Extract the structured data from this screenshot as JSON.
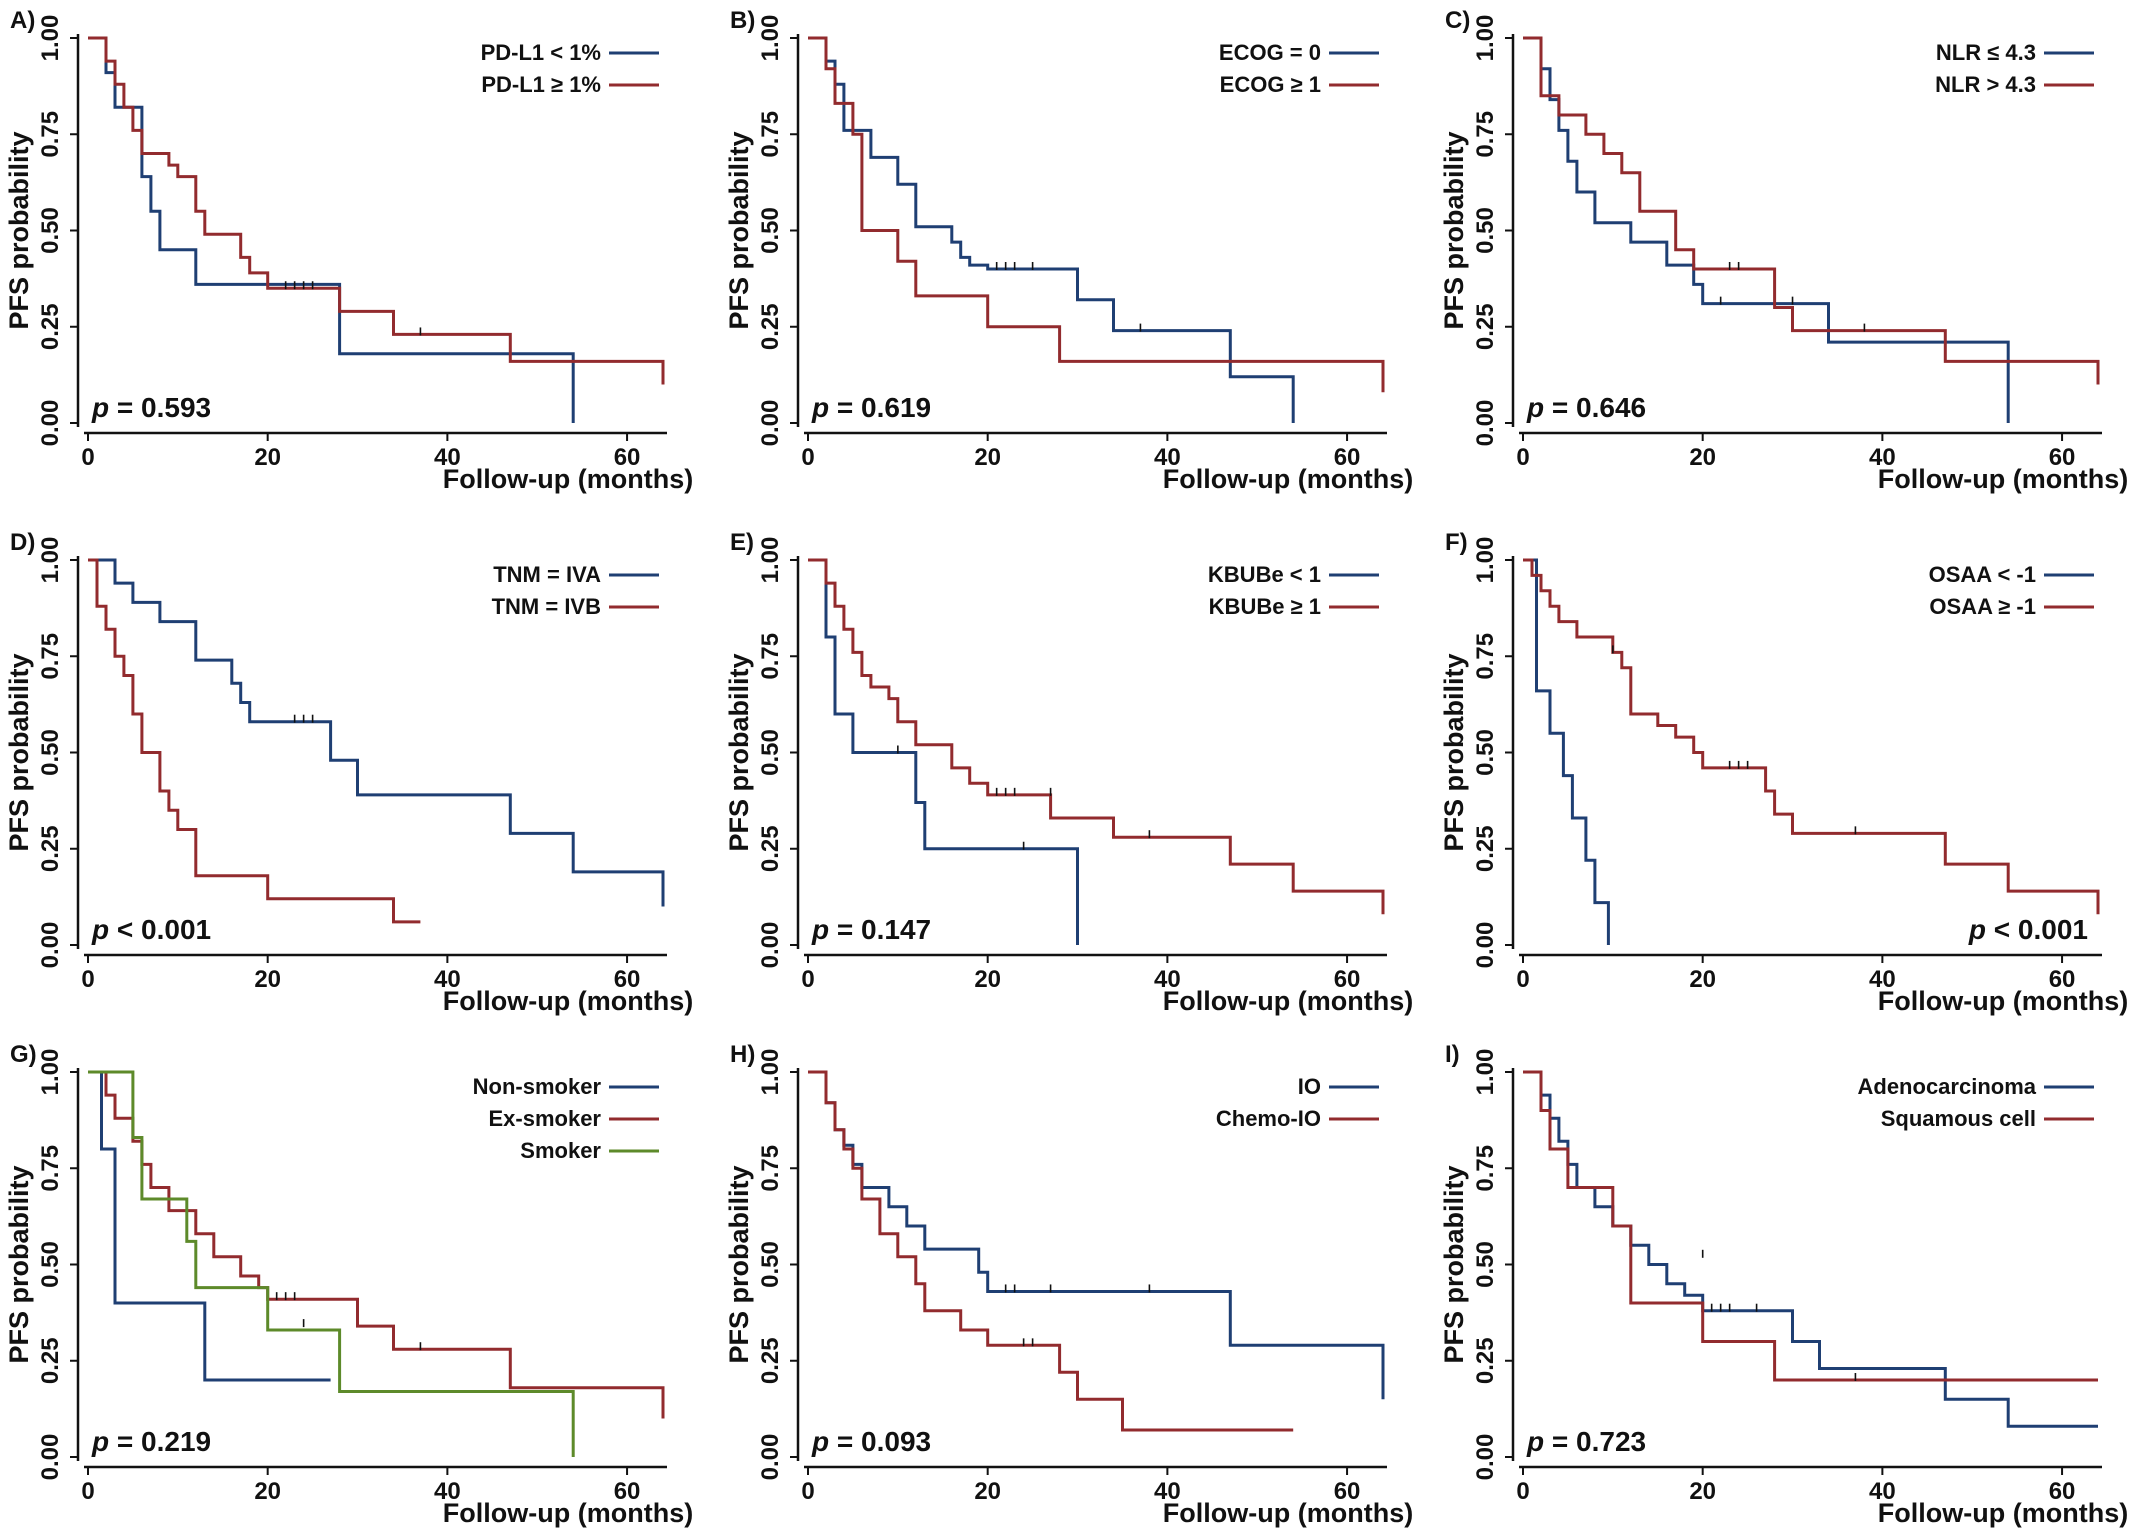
{
  "colors": {
    "blue": "#1f3f73",
    "red": "#922b2e",
    "green": "#5d8a2a",
    "axis": "#111111"
  },
  "chart_data": [
    {
      "type": "line",
      "panel": "A)",
      "xlabel": "Follow-up (months)",
      "ylabel": "PFS probability",
      "xlim": [
        0,
        64
      ],
      "ylim": [
        0,
        1
      ],
      "xticks": [
        "0",
        "20",
        "40",
        "60"
      ],
      "yticks": [
        "0.00",
        "0.25",
        "0.50",
        "0.75",
        "1.00"
      ],
      "p_value": "0.593",
      "p_prefix": "p",
      "p_op": "=",
      "p_position": "bottom-left",
      "legend_position": "top-right",
      "series": [
        {
          "name": "PD-L1 < 1%",
          "color": "blue",
          "x": [
            0,
            2,
            3,
            6,
            7,
            8,
            12,
            28,
            54
          ],
          "y": [
            1.0,
            0.91,
            0.82,
            0.64,
            0.55,
            0.45,
            0.36,
            0.18,
            0.0
          ],
          "censor": []
        },
        {
          "name": "PD-L1 ≥ 1%",
          "color": "red",
          "x": [
            0,
            2,
            3,
            4,
            5,
            6,
            9,
            10,
            12,
            13,
            17,
            18,
            20,
            28,
            34,
            47,
            64
          ],
          "y": [
            1.0,
            0.94,
            0.88,
            0.82,
            0.76,
            0.7,
            0.67,
            0.64,
            0.55,
            0.49,
            0.43,
            0.39,
            0.35,
            0.29,
            0.23,
            0.16,
            0.1
          ],
          "censor": [
            [
              22,
              0.35
            ],
            [
              23,
              0.35
            ],
            [
              24,
              0.35
            ],
            [
              25,
              0.35
            ],
            [
              37,
              0.23
            ]
          ]
        }
      ]
    },
    {
      "type": "line",
      "panel": "B)",
      "xlabel": "Follow-up (months)",
      "ylabel": "PFS probability",
      "xlim": [
        0,
        64
      ],
      "ylim": [
        0,
        1
      ],
      "xticks": [
        "0",
        "20",
        "40",
        "60"
      ],
      "yticks": [
        "0.00",
        "0.25",
        "0.50",
        "0.75",
        "1.00"
      ],
      "p_value": "0.619",
      "p_prefix": "p",
      "p_op": "=",
      "p_position": "bottom-left",
      "legend_position": "top-right",
      "series": [
        {
          "name": "ECOG = 0",
          "color": "blue",
          "x": [
            0,
            2,
            3,
            4,
            7,
            10,
            12,
            16,
            17,
            18,
            20,
            30,
            34,
            47,
            54
          ],
          "y": [
            1.0,
            0.94,
            0.88,
            0.76,
            0.69,
            0.62,
            0.51,
            0.47,
            0.43,
            0.41,
            0.4,
            0.32,
            0.24,
            0.12,
            0.0
          ],
          "censor": [
            [
              21,
              0.4
            ],
            [
              22,
              0.4
            ],
            [
              23,
              0.4
            ],
            [
              25,
              0.4
            ],
            [
              37,
              0.24
            ]
          ]
        },
        {
          "name": "ECOG ≥ 1",
          "color": "red",
          "x": [
            0,
            2,
            3,
            5,
            6,
            10,
            12,
            20,
            28,
            64
          ],
          "y": [
            1.0,
            0.92,
            0.83,
            0.75,
            0.5,
            0.42,
            0.33,
            0.25,
            0.16,
            0.08
          ],
          "censor": []
        }
      ]
    },
    {
      "type": "line",
      "panel": "C)",
      "xlabel": "Follow-up (months)",
      "ylabel": "PFS probability",
      "xlim": [
        0,
        64
      ],
      "ylim": [
        0,
        1
      ],
      "xticks": [
        "0",
        "20",
        "40",
        "60"
      ],
      "yticks": [
        "0.00",
        "0.25",
        "0.50",
        "0.75",
        "1.00"
      ],
      "p_value": "0.646",
      "p_prefix": "p",
      "p_op": "=",
      "p_position": "bottom-left",
      "legend_position": "top-right",
      "series": [
        {
          "name": "NLR ≤ 4.3",
          "color": "blue",
          "x": [
            0,
            2,
            3,
            4,
            5,
            6,
            8,
            12,
            16,
            19,
            20,
            34,
            54
          ],
          "y": [
            1.0,
            0.92,
            0.84,
            0.76,
            0.68,
            0.6,
            0.52,
            0.47,
            0.41,
            0.36,
            0.31,
            0.21,
            0.0
          ],
          "censor": [
            [
              22,
              0.31
            ],
            [
              30,
              0.31
            ]
          ]
        },
        {
          "name": "NLR > 4.3",
          "color": "red",
          "x": [
            0,
            2,
            4,
            7,
            9,
            11,
            13,
            17,
            19,
            21,
            28,
            30,
            47,
            64
          ],
          "y": [
            1.0,
            0.85,
            0.8,
            0.75,
            0.7,
            0.65,
            0.55,
            0.45,
            0.4,
            0.4,
            0.3,
            0.24,
            0.16,
            0.1
          ],
          "censor": [
            [
              23,
              0.4
            ],
            [
              24,
              0.4
            ],
            [
              38,
              0.24
            ]
          ]
        }
      ]
    },
    {
      "type": "line",
      "panel": "D)",
      "xlabel": "Follow-up (months)",
      "ylabel": "PFS probability",
      "xlim": [
        0,
        64
      ],
      "ylim": [
        0,
        1
      ],
      "xticks": [
        "0",
        "20",
        "40",
        "60"
      ],
      "yticks": [
        "0.00",
        "0.25",
        "0.50",
        "0.75",
        "1.00"
      ],
      "p_value": "< 0.001",
      "p_prefix": "p",
      "p_op": "",
      "p_position": "bottom-left",
      "legend_position": "top-right",
      "series": [
        {
          "name": "TNM = IVA",
          "color": "blue",
          "x": [
            0,
            3,
            5,
            8,
            12,
            16,
            17,
            18,
            20,
            27,
            30,
            47,
            54,
            64
          ],
          "y": [
            1.0,
            0.94,
            0.89,
            0.84,
            0.74,
            0.68,
            0.63,
            0.58,
            0.58,
            0.48,
            0.39,
            0.29,
            0.19,
            0.1
          ],
          "censor": [
            [
              23,
              0.58
            ],
            [
              24,
              0.58
            ],
            [
              25,
              0.58
            ]
          ]
        },
        {
          "name": "TNM = IVB",
          "color": "red",
          "x": [
            0,
            1,
            2,
            3,
            4,
            5,
            6,
            8,
            9,
            10,
            12,
            20,
            34,
            37
          ],
          "y": [
            1.0,
            0.88,
            0.82,
            0.75,
            0.7,
            0.6,
            0.5,
            0.4,
            0.35,
            0.3,
            0.18,
            0.12,
            0.06,
            0.06
          ],
          "censor": []
        }
      ]
    },
    {
      "type": "line",
      "panel": "E)",
      "xlabel": "Follow-up (months)",
      "ylabel": "PFS probability",
      "xlim": [
        0,
        64
      ],
      "ylim": [
        0,
        1
      ],
      "xticks": [
        "0",
        "20",
        "40",
        "60"
      ],
      "yticks": [
        "0.00",
        "0.25",
        "0.50",
        "0.75",
        "1.00"
      ],
      "p_value": "0.147",
      "p_prefix": "p",
      "p_op": "=",
      "p_position": "bottom-left",
      "legend_position": "top-right",
      "series": [
        {
          "name": "KBUBe < 1",
          "color": "blue",
          "x": [
            0,
            2,
            3,
            5,
            8,
            12,
            13,
            30
          ],
          "y": [
            1.0,
            0.8,
            0.6,
            0.5,
            0.5,
            0.37,
            0.25,
            0.0
          ],
          "censor": [
            [
              10,
              0.5
            ],
            [
              24,
              0.25
            ]
          ]
        },
        {
          "name": "KBUBe ≥ 1",
          "color": "red",
          "x": [
            0,
            2,
            3,
            4,
            5,
            6,
            7,
            9,
            10,
            12,
            16,
            18,
            20,
            27,
            34,
            47,
            54,
            64
          ],
          "y": [
            1.0,
            0.94,
            0.88,
            0.82,
            0.76,
            0.7,
            0.67,
            0.64,
            0.58,
            0.52,
            0.46,
            0.42,
            0.39,
            0.33,
            0.28,
            0.21,
            0.14,
            0.08
          ],
          "censor": [
            [
              21,
              0.39
            ],
            [
              22,
              0.39
            ],
            [
              23,
              0.39
            ],
            [
              27,
              0.39
            ],
            [
              38,
              0.28
            ]
          ]
        }
      ]
    },
    {
      "type": "line",
      "panel": "F)",
      "xlabel": "Follow-up (months)",
      "ylabel": "PFS probability",
      "xlim": [
        0,
        64
      ],
      "ylim": [
        0,
        1
      ],
      "xticks": [
        "0",
        "20",
        "40",
        "60"
      ],
      "yticks": [
        "0.00",
        "0.25",
        "0.50",
        "0.75",
        "1.00"
      ],
      "p_value": "< 0.001",
      "p_prefix": "p",
      "p_op": "",
      "p_position": "bottom-right",
      "legend_position": "top-right",
      "series": [
        {
          "name": "OSAA < -1",
          "color": "blue",
          "x": [
            0,
            1.5,
            3,
            4.5,
            5.5,
            7,
            8,
            9.5
          ],
          "y": [
            1.0,
            0.66,
            0.55,
            0.44,
            0.33,
            0.22,
            0.11,
            0.0
          ],
          "censor": []
        },
        {
          "name": "OSAA ≥ -1",
          "color": "red",
          "x": [
            0,
            1,
            2,
            3,
            4,
            6,
            10,
            11,
            12,
            15,
            17,
            19,
            20,
            27,
            28,
            30,
            34,
            47,
            54,
            64
          ],
          "y": [
            1.0,
            0.96,
            0.92,
            0.88,
            0.84,
            0.8,
            0.76,
            0.72,
            0.6,
            0.57,
            0.54,
            0.5,
            0.46,
            0.4,
            0.34,
            0.29,
            0.29,
            0.21,
            0.14,
            0.08
          ],
          "censor": [
            [
              10,
              0.76
            ],
            [
              23,
              0.46
            ],
            [
              24,
              0.46
            ],
            [
              25,
              0.46
            ],
            [
              37,
              0.29
            ]
          ]
        }
      ]
    },
    {
      "type": "line",
      "panel": "G)",
      "xlabel": "Follow-up (months)",
      "ylabel": "PFS probability",
      "xlim": [
        0,
        64
      ],
      "ylim": [
        0,
        1
      ],
      "xticks": [
        "0",
        "20",
        "40",
        "60"
      ],
      "yticks": [
        "0.00",
        "0.25",
        "0.50",
        "0.75",
        "1.00"
      ],
      "p_value": "0.219",
      "p_prefix": "p",
      "p_op": "=",
      "p_position": "bottom-left",
      "legend_position": "top-right",
      "series": [
        {
          "name": "Non-smoker",
          "color": "blue",
          "x": [
            0,
            1.5,
            3,
            13,
            27
          ],
          "y": [
            1.0,
            0.8,
            0.4,
            0.2,
            0.2
          ],
          "censor": []
        },
        {
          "name": "Ex-smoker",
          "color": "red",
          "x": [
            0,
            2,
            3,
            5,
            6,
            7,
            9,
            12,
            14,
            17,
            19,
            20,
            30,
            34,
            47,
            64
          ],
          "y": [
            1.0,
            0.94,
            0.88,
            0.82,
            0.76,
            0.7,
            0.64,
            0.58,
            0.52,
            0.47,
            0.44,
            0.41,
            0.34,
            0.28,
            0.18,
            0.1
          ],
          "censor": [
            [
              21,
              0.41
            ],
            [
              22,
              0.41
            ],
            [
              23,
              0.41
            ],
            [
              24,
              0.34
            ],
            [
              37,
              0.28
            ]
          ]
        },
        {
          "name": "Smoker",
          "color": "green",
          "x": [
            0,
            5,
            6,
            10,
            11,
            12,
            19,
            20,
            28,
            54
          ],
          "y": [
            1.0,
            0.83,
            0.67,
            0.67,
            0.56,
            0.44,
            0.44,
            0.33,
            0.17,
            0.0
          ],
          "censor": []
        }
      ]
    },
    {
      "type": "line",
      "panel": "H)",
      "xlabel": "Follow-up (months)",
      "ylabel": "PFS probability",
      "xlim": [
        0,
        64
      ],
      "ylim": [
        0,
        1
      ],
      "xticks": [
        "0",
        "20",
        "40",
        "60"
      ],
      "yticks": [
        "0.00",
        "0.25",
        "0.50",
        "0.75",
        "1.00"
      ],
      "p_value": "0.093",
      "p_prefix": "p",
      "p_op": "=",
      "p_position": "bottom-left",
      "legend_position": "top-right",
      "series": [
        {
          "name": "IO",
          "color": "blue",
          "x": [
            0,
            2,
            3,
            4,
            5,
            6,
            9,
            11,
            13,
            19,
            20,
            47,
            64
          ],
          "y": [
            1.0,
            0.92,
            0.85,
            0.81,
            0.76,
            0.7,
            0.65,
            0.6,
            0.54,
            0.48,
            0.43,
            0.29,
            0.15
          ],
          "censor": [
            [
              22,
              0.43
            ],
            [
              23,
              0.43
            ],
            [
              27,
              0.43
            ],
            [
              38,
              0.43
            ]
          ]
        },
        {
          "name": "Chemo-IO",
          "color": "red",
          "x": [
            0,
            2,
            3,
            4,
            5,
            6,
            8,
            10,
            12,
            13,
            17,
            20,
            28,
            30,
            35,
            54
          ],
          "y": [
            1.0,
            0.92,
            0.85,
            0.8,
            0.75,
            0.67,
            0.58,
            0.52,
            0.45,
            0.38,
            0.33,
            0.29,
            0.22,
            0.15,
            0.07,
            0.07
          ],
          "censor": [
            [
              24,
              0.29
            ],
            [
              25,
              0.29
            ]
          ]
        }
      ]
    },
    {
      "type": "line",
      "panel": "I)",
      "xlabel": "Follow-up (months)",
      "ylabel": "PFS probability",
      "xlim": [
        0,
        64
      ],
      "ylim": [
        0,
        1
      ],
      "xticks": [
        "0",
        "20",
        "40",
        "60"
      ],
      "yticks": [
        "0.00",
        "0.25",
        "0.50",
        "0.75",
        "1.00"
      ],
      "p_value": "0.723",
      "p_prefix": "p",
      "p_op": "=",
      "p_position": "bottom-left",
      "legend_position": "top-right",
      "series": [
        {
          "name": "Adenocarcinoma",
          "color": "blue",
          "x": [
            0,
            2,
            3,
            4,
            5,
            6,
            8,
            10,
            12,
            14,
            16,
            18,
            20,
            30,
            33,
            47,
            54,
            64
          ],
          "y": [
            1.0,
            0.94,
            0.88,
            0.82,
            0.76,
            0.7,
            0.65,
            0.6,
            0.55,
            0.5,
            0.45,
            0.42,
            0.38,
            0.3,
            0.23,
            0.15,
            0.08,
            0.08
          ],
          "censor": [
            [
              20,
              0.52
            ],
            [
              21,
              0.38
            ],
            [
              22,
              0.38
            ],
            [
              23,
              0.38
            ],
            [
              26,
              0.38
            ]
          ]
        },
        {
          "name": "Squamous cell",
          "color": "red",
          "x": [
            0,
            2,
            3,
            5,
            9,
            10,
            12,
            17,
            20,
            28,
            64
          ],
          "y": [
            1.0,
            0.9,
            0.8,
            0.7,
            0.7,
            0.6,
            0.4,
            0.4,
            0.3,
            0.2,
            0.2
          ],
          "censor": [
            [
              37,
              0.2
            ]
          ]
        }
      ]
    }
  ]
}
